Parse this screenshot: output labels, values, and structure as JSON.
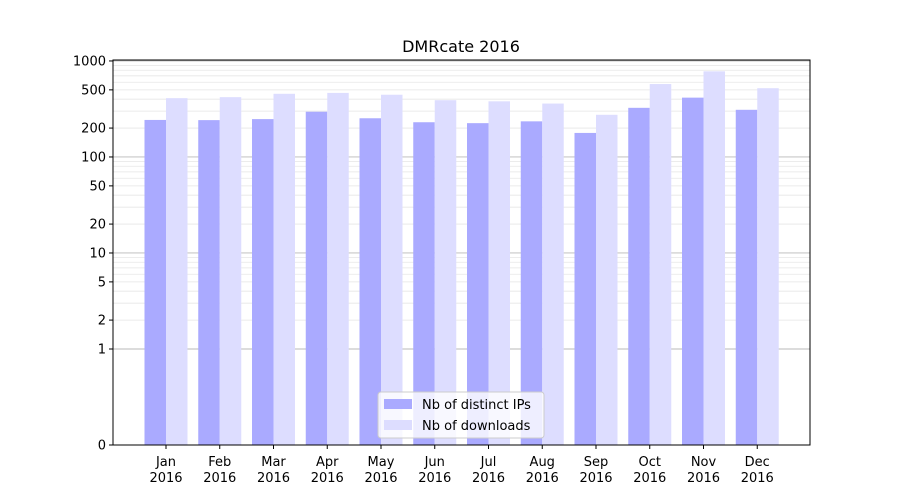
{
  "chart_data": {
    "type": "bar",
    "title": "DMRcate 2016",
    "xlabel": "",
    "ylabel": "",
    "y_scale": "symlog",
    "ylim": [
      0,
      1000
    ],
    "y_ticks": [
      0,
      1,
      2,
      5,
      10,
      20,
      50,
      100,
      200,
      500,
      1000
    ],
    "y_tick_labels": [
      "0",
      "1",
      "2",
      "5",
      "10",
      "20",
      "50",
      "100",
      "200",
      "500",
      "1000"
    ],
    "grid": true,
    "legend_position": "bottom-center",
    "categories": [
      [
        "Jan",
        "2016"
      ],
      [
        "Feb",
        "2016"
      ],
      [
        "Mar",
        "2016"
      ],
      [
        "Apr",
        "2016"
      ],
      [
        "May",
        "2016"
      ],
      [
        "Jun",
        "2016"
      ],
      [
        "Jul",
        "2016"
      ],
      [
        "Aug",
        "2016"
      ],
      [
        "Sep",
        "2016"
      ],
      [
        "Oct",
        "2016"
      ],
      [
        "Nov",
        "2016"
      ],
      [
        "Dec",
        "2016"
      ]
    ],
    "series": [
      {
        "name": "Nb of distinct IPs",
        "color": "#aaaaff",
        "values": [
          243,
          242,
          248,
          296,
          253,
          230,
          225,
          235,
          178,
          325,
          415,
          310
        ]
      },
      {
        "name": "Nb of downloads",
        "color": "#ddddff",
        "values": [
          410,
          420,
          455,
          465,
          445,
          390,
          380,
          360,
          275,
          575,
          780,
          520
        ]
      }
    ]
  }
}
